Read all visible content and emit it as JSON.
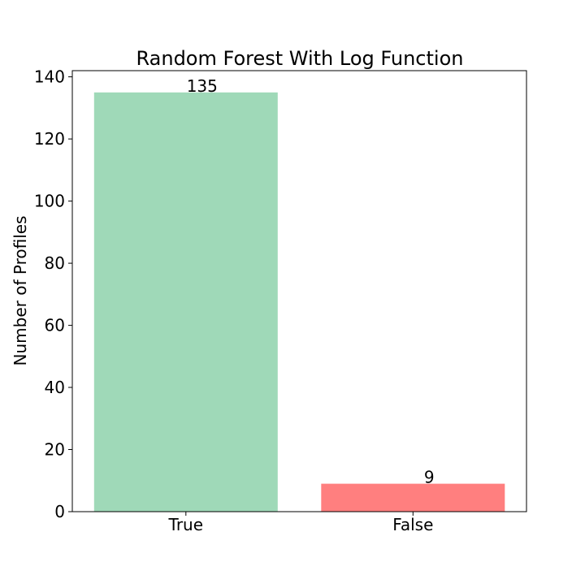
{
  "chart_data": {
    "type": "bar",
    "title": "Random Forest With Log Function",
    "xlabel": "",
    "ylabel": "Number of Profiles",
    "categories": [
      "True",
      "False"
    ],
    "values": [
      135,
      9
    ],
    "data_labels": [
      "135",
      "9"
    ],
    "colors": [
      "#9fd9b8",
      "#ff7f7f"
    ],
    "ylim": [
      0,
      142
    ],
    "yticks": [
      0,
      20,
      40,
      60,
      80,
      100,
      120,
      140
    ],
    "ytick_labels": [
      "0",
      "20",
      "40",
      "60",
      "80",
      "100",
      "120",
      "140"
    ],
    "grid": false,
    "legend": "none"
  }
}
